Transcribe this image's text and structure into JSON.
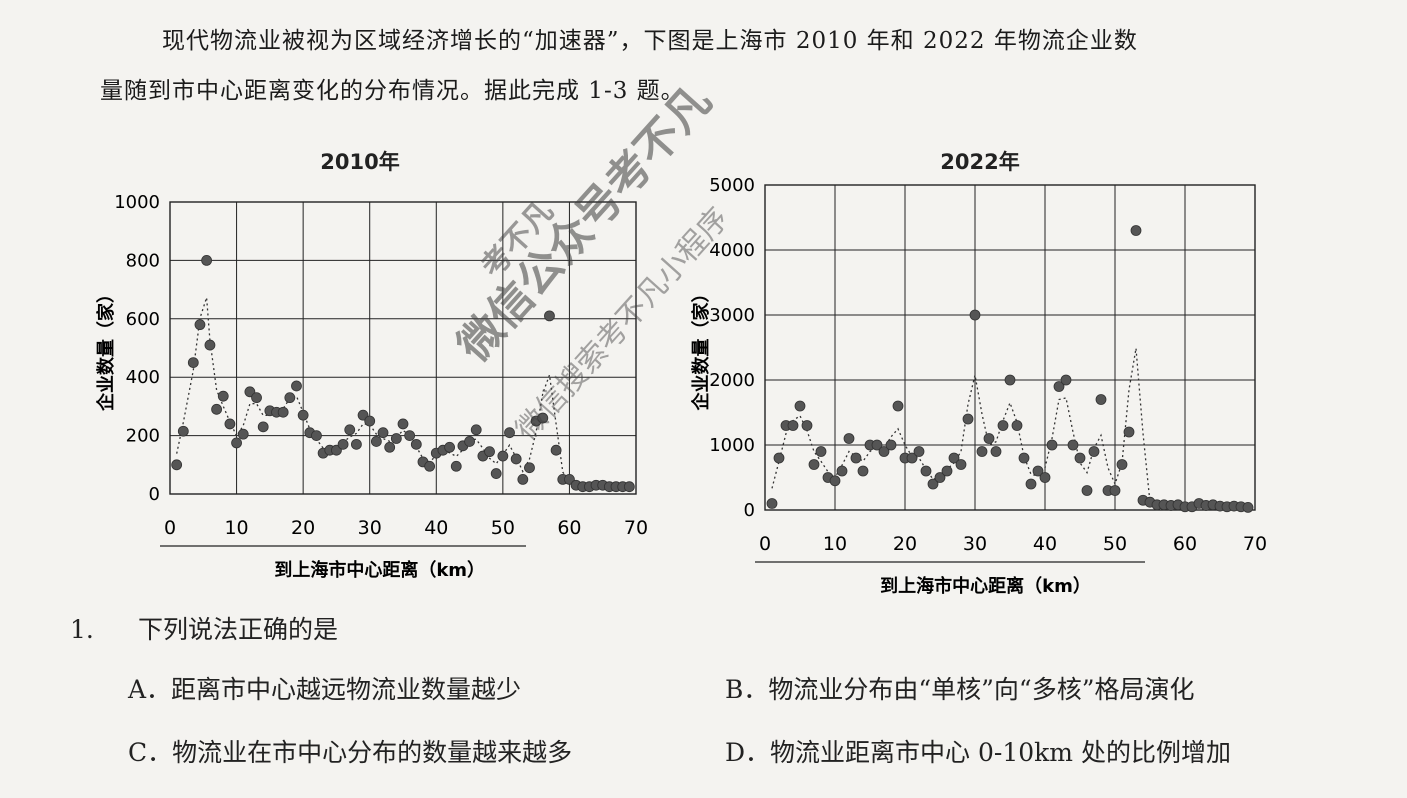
{
  "intro": {
    "line1": "现代物流业被视为区域经济增长的“加速器”，下图是上海市 2010 年和 2022 年物流企业数",
    "line2": "量随到市中心距离变化的分布情况。据此完成 1-3 题。"
  },
  "chart_data": [
    {
      "type": "scatter",
      "title": "2010年",
      "xlabel": "到上海市中心距离（km）",
      "ylabel": "企业数量（家）",
      "xlim": [
        0,
        70
      ],
      "ylim": [
        0,
        1000
      ],
      "xticks": [
        0,
        10,
        20,
        30,
        40,
        50,
        60,
        70
      ],
      "yticks": [
        0,
        200,
        400,
        600,
        800,
        1000
      ],
      "grid": true,
      "x": [
        1,
        2,
        3.5,
        4.5,
        5.5,
        6,
        7,
        8,
        9,
        10,
        11,
        12,
        13,
        14,
        15,
        16,
        17,
        18,
        19,
        20,
        21,
        22,
        23,
        24,
        25,
        26,
        27,
        28,
        29,
        30,
        31,
        32,
        33,
        34,
        35,
        36,
        37,
        38,
        39,
        40,
        41,
        42,
        43,
        44,
        45,
        46,
        47,
        48,
        49,
        50,
        51,
        52,
        53,
        54,
        55,
        56,
        57,
        58,
        59,
        60,
        61,
        62,
        63,
        64,
        65,
        66,
        67,
        68,
        69
      ],
      "y": [
        100,
        215,
        450,
        580,
        800,
        510,
        290,
        335,
        240,
        175,
        205,
        350,
        330,
        230,
        285,
        280,
        280,
        330,
        370,
        270,
        210,
        200,
        140,
        150,
        150,
        170,
        220,
        170,
        270,
        250,
        180,
        210,
        160,
        190,
        240,
        200,
        170,
        110,
        95,
        140,
        150,
        160,
        95,
        165,
        180,
        220,
        130,
        145,
        70,
        130,
        210,
        120,
        50,
        90,
        250,
        260,
        610,
        150,
        50,
        50,
        30,
        25,
        25,
        30,
        30,
        25,
        25,
        25,
        25
      ]
    },
    {
      "type": "scatter",
      "title": "2022年",
      "xlabel": "到上海市中心距离（km）",
      "ylabel": "企业数量（家）",
      "xlim": [
        0,
        70
      ],
      "ylim": [
        0,
        5000
      ],
      "xticks": [
        0,
        10,
        20,
        30,
        40,
        50,
        60,
        70
      ],
      "yticks": [
        0,
        1000,
        2000,
        3000,
        4000,
        5000
      ],
      "grid": true,
      "x": [
        1,
        2,
        3,
        4,
        5,
        6,
        7,
        8,
        9,
        10,
        11,
        12,
        13,
        14,
        15,
        16,
        17,
        18,
        19,
        20,
        21,
        22,
        23,
        24,
        25,
        26,
        27,
        28,
        29,
        30,
        31,
        32,
        33,
        34,
        35,
        36,
        37,
        38,
        39,
        40,
        41,
        42,
        43,
        44,
        45,
        46,
        47,
        48,
        49,
        50,
        51,
        52,
        53,
        54,
        55,
        56,
        57,
        58,
        59,
        60,
        61,
        62,
        63,
        64,
        65,
        66,
        67,
        68,
        69
      ],
      "y": [
        100,
        800,
        1300,
        1300,
        1600,
        1300,
        700,
        900,
        500,
        450,
        600,
        1100,
        800,
        600,
        1000,
        1000,
        900,
        1000,
        1600,
        800,
        800,
        900,
        600,
        400,
        500,
        600,
        800,
        700,
        1400,
        3000,
        900,
        1100,
        900,
        1300,
        2000,
        1300,
        800,
        400,
        600,
        500,
        1000,
        1900,
        2000,
        1000,
        800,
        300,
        900,
        1700,
        300,
        300,
        700,
        1200,
        4300,
        150,
        120,
        80,
        80,
        70,
        80,
        50,
        50,
        100,
        70,
        80,
        60,
        50,
        60,
        50,
        40
      ]
    }
  ],
  "question": {
    "number": "1.",
    "stem": "下列说法正确的是",
    "options": {
      "a": "A．距离市中心越远物流业数量越少",
      "b": "B．物流业分布由“单核”向“多核”格局演化",
      "c": "C．物流业在市中心分布的数量越来越多",
      "d": "D．物流业距离市中心 0-10km 处的比例增加"
    }
  },
  "watermark": {
    "main": "微信公众号考不凡",
    "second": "微信搜索考不凡小程序",
    "third": "考不凡"
  },
  "colors": {
    "dot": "#555555",
    "grid": "#222222",
    "curve": "#333333"
  }
}
